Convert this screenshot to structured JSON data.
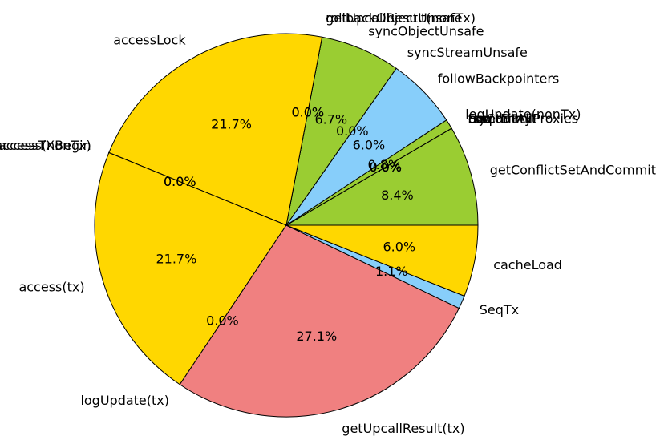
{
  "chart_data": {
    "type": "pie",
    "title": "",
    "start_angle_deg": 0,
    "direction": "counterclockwise",
    "slices": [
      {
        "label": "getConflictSetAndCommit",
        "value": 8.4,
        "pct": "8.4%",
        "color": "#9ACD32"
      },
      {
        "label": "tryCommit",
        "value": 0.0,
        "pct": "0.0%",
        "color": "#87CEFA"
      },
      {
        "label": "commitAllProxies",
        "value": 0.0,
        "pct": "0.0%",
        "color": "#9ACD32"
      },
      {
        "label": "Seq",
        "value": 0.0,
        "pct": "0.0%",
        "color": "#FFD700"
      },
      {
        "label": "resetDirty",
        "value": 0.0,
        "pct": "0.0%",
        "color": "#87CEFA"
      },
      {
        "label": "Seq",
        "value": 0.0,
        "pct": "0.0%",
        "color": "#9ACD32"
      },
      {
        "label": "logUpdate(nonTx)",
        "value": 0.8,
        "pct": "0.8%",
        "color": "#9ACD32"
      },
      {
        "label": "followBackpointers",
        "value": 6.0,
        "pct": "6.0%",
        "color": "#87CEFA"
      },
      {
        "label": "syncStreamUnsafe",
        "value": 0.0,
        "pct": "0.0%",
        "color": "#87CEFA"
      },
      {
        "label": "syncObjectUnsafe",
        "value": 6.7,
        "pct": "6.7%",
        "color": "#9ACD32"
      },
      {
        "label": "getUpcallResult(nonTx)",
        "value": 0.0,
        "pct": "0.0%",
        "color": "#9ACD32"
      },
      {
        "label": "rollbackObjectUnsafe",
        "value": 0.0,
        "pct": "0.0%",
        "color": "#9ACD32"
      },
      {
        "label": "accessLock",
        "value": 21.7,
        "pct": "21.7%",
        "color": "#FFD700"
      },
      {
        "label": "accessTXBegin",
        "value": 0.0,
        "pct": "0.0%",
        "color": "#FFD700"
      },
      {
        "label": "access(nonTx)",
        "value": 0.0,
        "pct": "0.0%",
        "color": "#FFD700"
      },
      {
        "label": "access(tx)",
        "value": 21.7,
        "pct": "21.7%",
        "color": "#FFD700"
      },
      {
        "label": "logUpdate(tx)",
        "value": 0.0,
        "pct": "0.0%",
        "color": "#FFD700"
      },
      {
        "label": "getUpcallResult(tx)",
        "value": 27.1,
        "pct": "27.1%",
        "color": "#F08080"
      },
      {
        "label": "SeqTx",
        "value": 1.1,
        "pct": "1.1%",
        "color": "#87CEFA"
      },
      {
        "label": "cacheLoad",
        "value": 6.0,
        "pct": "6.0%",
        "color": "#FFD700"
      }
    ]
  }
}
